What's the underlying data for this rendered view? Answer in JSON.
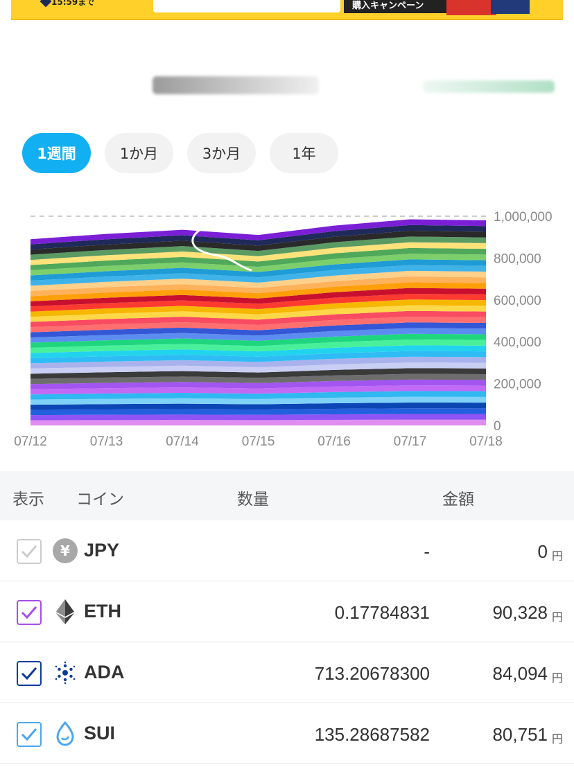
{
  "banner": {
    "time_text": "15:59まで",
    "campaign_text": "購入キャンペーン"
  },
  "period_tabs": [
    {
      "label": "1週間",
      "active": true
    },
    {
      "label": "1か月",
      "active": false
    },
    {
      "label": "3か月",
      "active": false
    },
    {
      "label": "1年",
      "active": false
    }
  ],
  "chart_data": {
    "type": "area",
    "stacked": true,
    "categories": [
      "07/12",
      "07/13",
      "07/14",
      "07/15",
      "07/16",
      "07/17",
      "07/18"
    ],
    "y_ticks": [
      "1,000,000",
      "800,000",
      "600,000",
      "400,000",
      "200,000",
      "0"
    ],
    "ylim": [
      0,
      1000000
    ],
    "total_values": [
      890000,
      915000,
      935000,
      910000,
      955000,
      985000,
      980000
    ],
    "reference_line": 1000000,
    "series_colors": [
      "#e08cf0",
      "#8f54f5",
      "#2360dd",
      "#0c46b5",
      "#7fd1f7",
      "#30b8f0",
      "#c16af5",
      "#a355f0",
      "#6d6d6d",
      "#3a3a3a",
      "#c9cef4",
      "#a9b2ec",
      "#2fbcf5",
      "#22d3ee",
      "#49f09a",
      "#1fd67f",
      "#5c8cf0",
      "#3457d6",
      "#ff6f6f",
      "#f94b61",
      "#ffd84a",
      "#f5b700",
      "#ff3b30",
      "#c8102e",
      "#ff9f0a",
      "#ffb25c",
      "#ffd08a",
      "#3fb3e8",
      "#1f9bd6",
      "#7ccf6a",
      "#50a85a",
      "#ffe27a",
      "#5a9a63",
      "#2a2a2a",
      "#1f2a5a",
      "#7a1fd6"
    ]
  },
  "table": {
    "headers": {
      "display": "表示",
      "coin": "コイン",
      "quantity": "数量",
      "amount": "金額"
    },
    "rows": [
      {
        "symbol": "JPY",
        "quantity": "-",
        "amount": "0",
        "unit": "円",
        "checkbox_color": "#cccccc",
        "icon": "yen-icon"
      },
      {
        "symbol": "ETH",
        "quantity": "0.17784831",
        "amount": "90,328",
        "unit": "円",
        "checkbox_color": "#a64ee8",
        "icon": "ethereum-icon"
      },
      {
        "symbol": "ADA",
        "quantity": "713.20678300",
        "amount": "84,094",
        "unit": "円",
        "checkbox_color": "#0d3b9a",
        "icon": "cardano-icon"
      },
      {
        "symbol": "SUI",
        "quantity": "135.28687582",
        "amount": "80,751",
        "unit": "円",
        "checkbox_color": "#4aa6ee",
        "icon": "sui-icon"
      }
    ]
  }
}
